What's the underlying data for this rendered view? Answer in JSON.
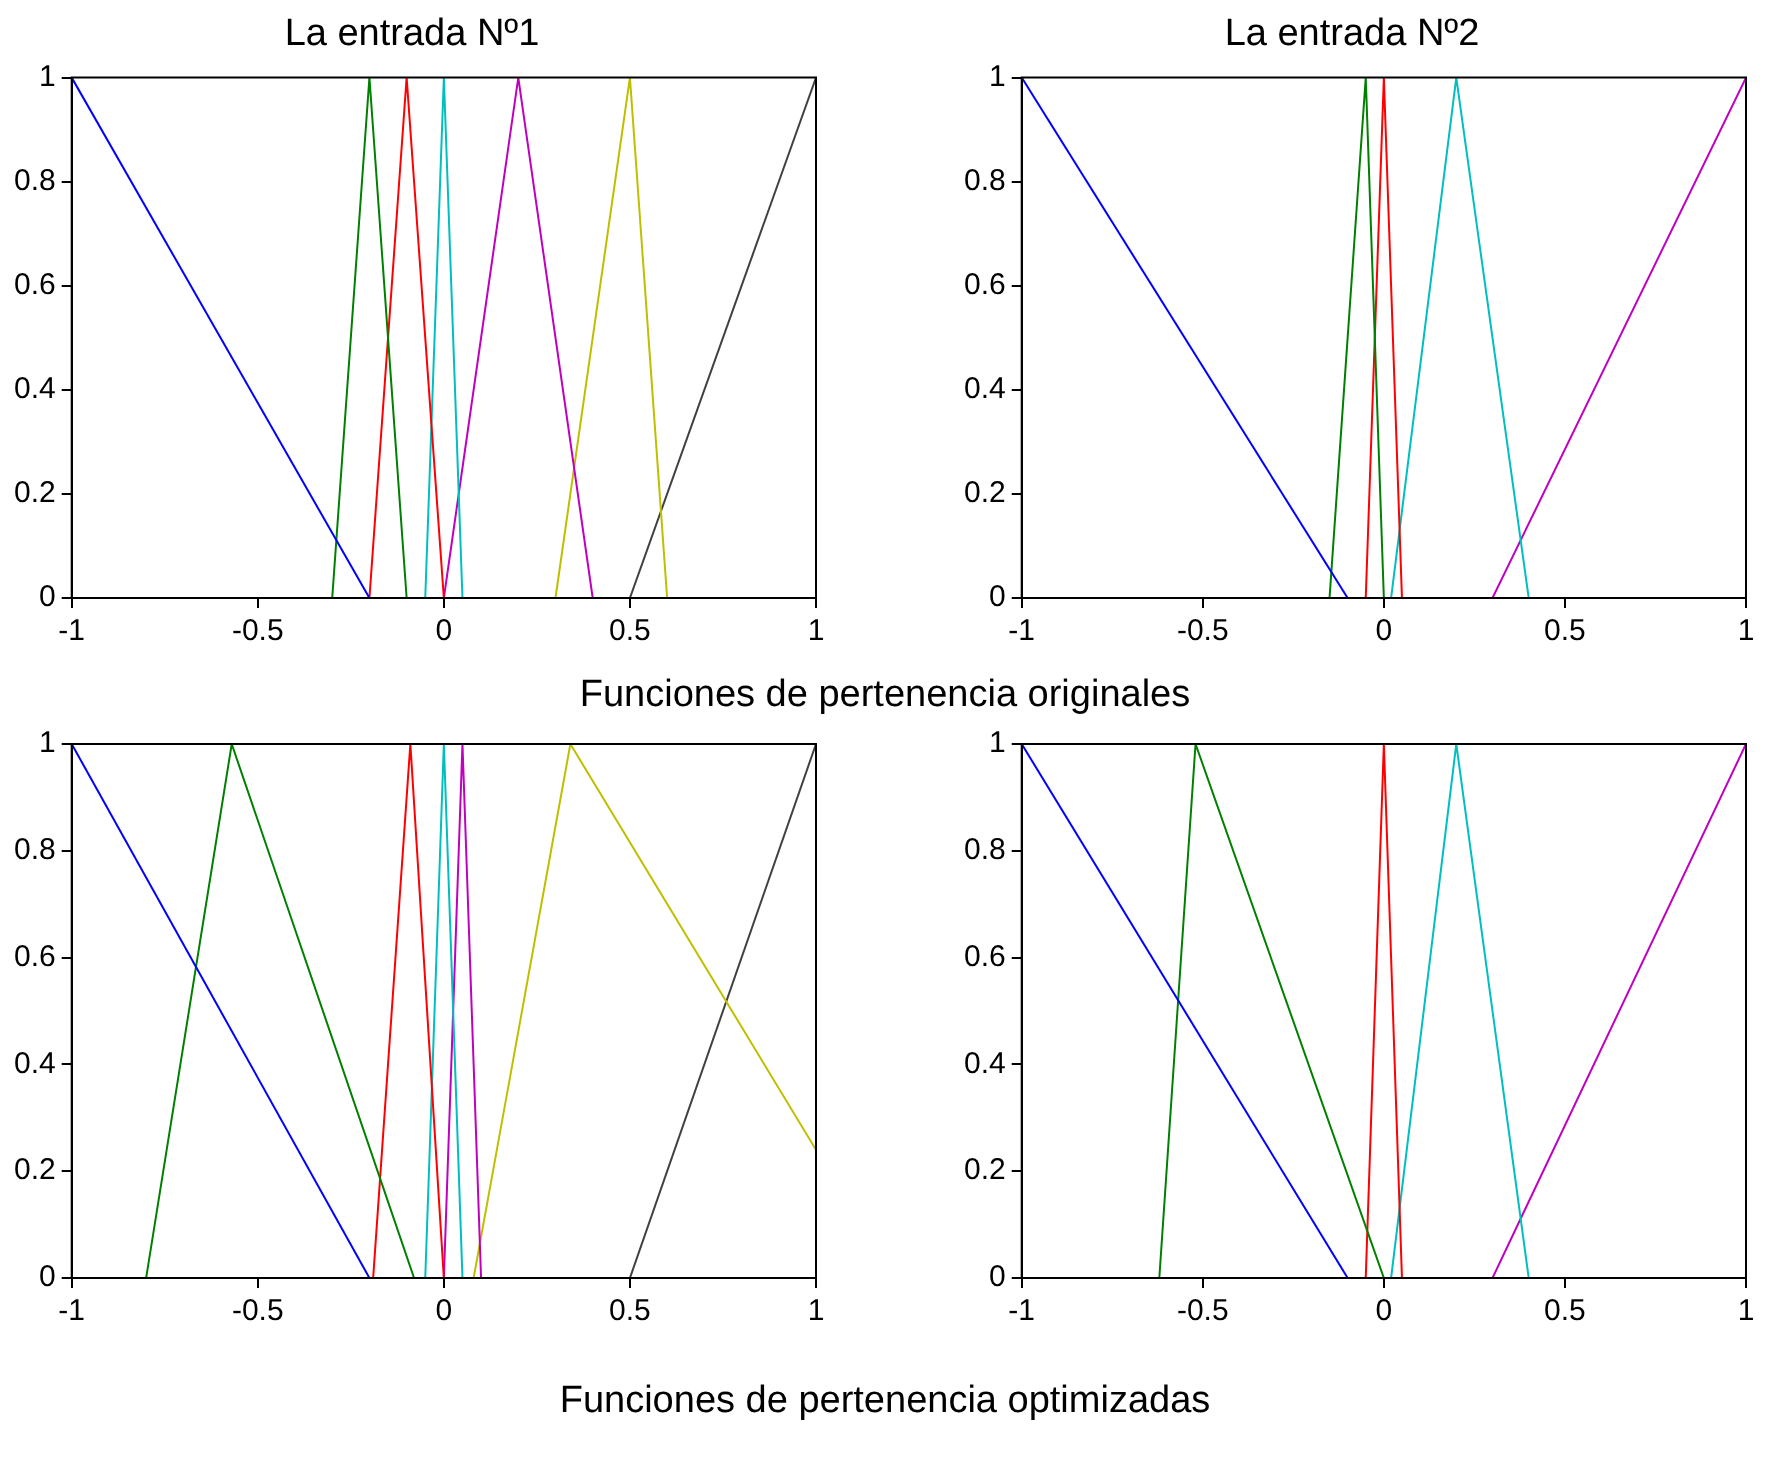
{
  "chart_data": [
    {
      "type": "line",
      "title": "La entrada Nº1",
      "xlim": [
        -1,
        1
      ],
      "xticks": [
        -1,
        -0.5,
        0,
        0.5,
        1
      ],
      "ylim": [
        0,
        1
      ],
      "yticks": [
        0,
        0.2,
        0.4,
        0.6,
        0.8,
        1
      ],
      "grid": false,
      "legend": false,
      "marker": "none",
      "line_style": "solid",
      "annotations": [
        "Funciones de pertenencia originales"
      ],
      "series": [
        {
          "color": "#0000ff",
          "x": [
            -1,
            -0.2
          ],
          "values": [
            1,
            0
          ]
        },
        {
          "color": "#008000",
          "x": [
            -0.3,
            -0.2,
            -0.1
          ],
          "values": [
            0,
            1,
            0
          ]
        },
        {
          "color": "#ff0000",
          "x": [
            -0.2,
            -0.1,
            0
          ],
          "values": [
            0,
            1,
            0
          ]
        },
        {
          "color": "#00bfbf",
          "x": [
            -0.05,
            0,
            0.05
          ],
          "values": [
            0,
            1,
            0
          ]
        },
        {
          "color": "#bf00bf",
          "x": [
            0,
            0.2,
            0.4
          ],
          "values": [
            0,
            1,
            0
          ]
        },
        {
          "color": "#bfbf00",
          "x": [
            0.3,
            0.5,
            0.6
          ],
          "values": [
            0,
            1,
            0
          ]
        },
        {
          "color": "#404040",
          "x": [
            0.5,
            1
          ],
          "values": [
            0,
            1
          ]
        }
      ]
    },
    {
      "type": "line",
      "title": "La entrada Nº2",
      "xlim": [
        -1,
        1
      ],
      "xticks": [
        -1,
        -0.5,
        0,
        0.5,
        1
      ],
      "ylim": [
        0,
        1
      ],
      "yticks": [
        0,
        0.2,
        0.4,
        0.6,
        0.8,
        1
      ],
      "grid": false,
      "legend": false,
      "marker": "none",
      "line_style": "solid",
      "series": [
        {
          "color": "#0000ff",
          "x": [
            -1,
            -0.1
          ],
          "values": [
            1,
            0
          ]
        },
        {
          "color": "#008000",
          "x": [
            -0.15,
            -0.05,
            0
          ],
          "values": [
            0,
            1,
            0
          ]
        },
        {
          "color": "#ff0000",
          "x": [
            -0.05,
            0,
            0.05
          ],
          "values": [
            0,
            1,
            0
          ]
        },
        {
          "color": "#00bfbf",
          "x": [
            0.02,
            0.2,
            0.4
          ],
          "values": [
            0,
            1,
            0
          ]
        },
        {
          "color": "#bf00bf",
          "x": [
            0.3,
            1
          ],
          "values": [
            0,
            1
          ]
        }
      ]
    },
    {
      "type": "line",
      "xlim": [
        -1,
        1
      ],
      "xticks": [
        -1,
        -0.5,
        0,
        0.5,
        1
      ],
      "ylim": [
        0,
        1
      ],
      "yticks": [
        0,
        0.2,
        0.4,
        0.6,
        0.8,
        1
      ],
      "grid": false,
      "legend": false,
      "marker": "none",
      "line_style": "solid",
      "annotations": [
        "Funciones de pertenencia optimizadas"
      ],
      "series": [
        {
          "color": "#0000ff",
          "x": [
            -1,
            -0.2
          ],
          "values": [
            1,
            0
          ]
        },
        {
          "color": "#008000",
          "x": [
            -0.8,
            -0.57,
            -0.08
          ],
          "values": [
            0,
            1,
            0
          ]
        },
        {
          "color": "#ff0000",
          "x": [
            -0.19,
            -0.09,
            0
          ],
          "values": [
            0,
            1,
            0
          ]
        },
        {
          "color": "#00bfbf",
          "x": [
            -0.05,
            0,
            0.05
          ],
          "values": [
            0,
            1,
            0
          ]
        },
        {
          "color": "#bf00bf",
          "x": [
            0,
            0.05,
            0.1
          ],
          "values": [
            0,
            1,
            0
          ]
        },
        {
          "color": "#bfbf00",
          "x": [
            0.08,
            0.34,
            1
          ],
          "values": [
            0,
            1,
            0.24
          ]
        },
        {
          "color": "#404040",
          "x": [
            0.5,
            1
          ],
          "values": [
            0,
            1
          ]
        }
      ]
    },
    {
      "type": "line",
      "xlim": [
        -1,
        1
      ],
      "xticks": [
        -1,
        -0.5,
        0,
        0.5,
        1
      ],
      "ylim": [
        0,
        1
      ],
      "yticks": [
        0,
        0.2,
        0.4,
        0.6,
        0.8,
        1
      ],
      "grid": false,
      "legend": false,
      "marker": "none",
      "line_style": "solid",
      "series": [
        {
          "color": "#0000ff",
          "x": [
            -1,
            -0.1
          ],
          "values": [
            1,
            0
          ]
        },
        {
          "color": "#008000",
          "x": [
            -0.62,
            -0.52,
            0
          ],
          "values": [
            0,
            1,
            0
          ]
        },
        {
          "color": "#ff0000",
          "x": [
            -0.05,
            0,
            0.05
          ],
          "values": [
            0,
            1,
            0
          ]
        },
        {
          "color": "#00bfbf",
          "x": [
            0.02,
            0.2,
            0.4
          ],
          "values": [
            0,
            1,
            0
          ]
        },
        {
          "color": "#bf00bf",
          "x": [
            0.3,
            1
          ],
          "values": [
            0,
            1
          ]
        }
      ]
    }
  ]
}
